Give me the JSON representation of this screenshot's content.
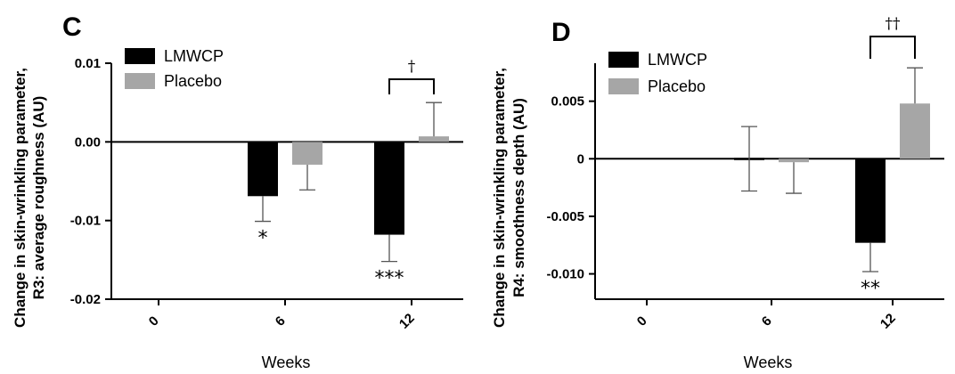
{
  "chart_data": [
    {
      "type": "bar",
      "panel": "C",
      "ylabel": [
        "Change in skin-wrinkling parameter,",
        "R3: average  roughness (AU)"
      ],
      "xlabel": "Weeks",
      "categories": [
        "0",
        "6",
        "12"
      ],
      "ylim": [
        -0.02,
        0.01
      ],
      "yticks": [
        "0.01",
        "0.00",
        "-0.01",
        "-0.02"
      ],
      "ytick_values": [
        0.01,
        0.0,
        -0.01,
        -0.02
      ],
      "series": [
        {
          "name": "LMWCP",
          "color": "#000000",
          "values": [
            0,
            -0.0069,
            -0.0118
          ],
          "errors": [
            0,
            0.0032,
            0.0034
          ]
        },
        {
          "name": "Placebo",
          "color": "#a6a6a6",
          "values": [
            0,
            -0.0029,
            0.0007
          ],
          "errors": [
            0,
            0.0032,
            0.0043
          ]
        }
      ],
      "significance": [
        {
          "category": "6",
          "series": "LMWCP",
          "text": "*"
        },
        {
          "category": "12",
          "series": "LMWCP",
          "text": "***"
        }
      ],
      "bracket": {
        "category": "12",
        "text": "†"
      }
    },
    {
      "type": "bar",
      "panel": "D",
      "ylabel": [
        "Change in skin-wrinkling parameter,",
        "R4: smoothness  depth (AU)"
      ],
      "xlabel": "Weeks",
      "categories": [
        "0",
        "6",
        "12"
      ],
      "ylim": [
        -0.0122,
        0.0083
      ],
      "yticks": [
        "0.005",
        "0",
        "-0.005",
        "-0.010"
      ],
      "ytick_values": [
        0.005,
        0.0,
        -0.005,
        -0.01
      ],
      "series": [
        {
          "name": "LMWCP",
          "color": "#000000",
          "values": [
            0,
            0,
            -0.0073
          ],
          "errors": [
            0,
            0.0028,
            0.0025
          ]
        },
        {
          "name": "Placebo",
          "color": "#a6a6a6",
          "values": [
            0,
            -0.0003,
            0.0048
          ],
          "errors": [
            0,
            0.0027,
            0.0031
          ]
        }
      ],
      "significance": [
        {
          "category": "12",
          "series": "LMWCP",
          "text": "**"
        }
      ],
      "bracket": {
        "category": "12",
        "text": "††"
      }
    }
  ]
}
